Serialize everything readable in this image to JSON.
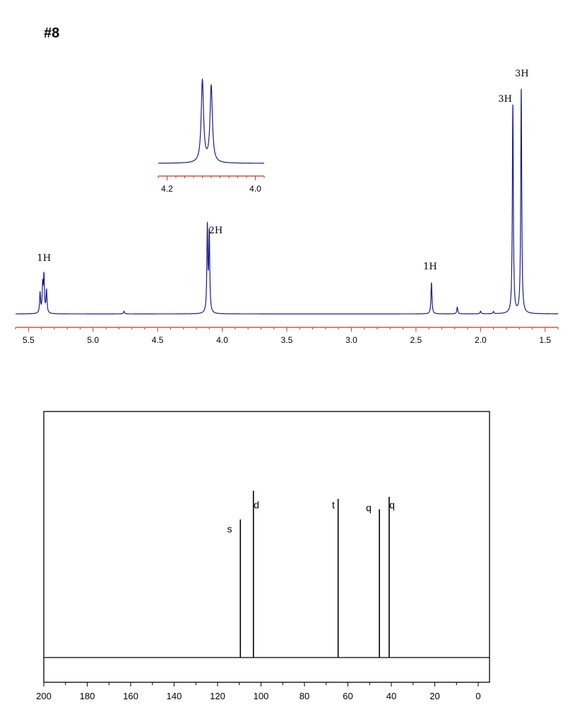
{
  "page": {
    "label": "#8"
  },
  "colors": {
    "spectrum": "#1a1a8c",
    "h_axis": "#c0392b",
    "c13_line": "#000000"
  },
  "chart_data": [
    {
      "type": "line",
      "xlabel": "",
      "ylabel": "",
      "xlim": [
        5.6,
        1.4
      ],
      "x_reversed": true,
      "ticks": [
        5.5,
        5.0,
        4.5,
        4.0,
        3.5,
        3.0,
        2.5,
        2.0,
        1.5
      ],
      "tick_labels": [
        "5.5",
        "5.0",
        "4.5",
        "4.0",
        "3.5",
        "3.0",
        "2.5",
        "2.0",
        "1.5"
      ],
      "peaks": [
        {
          "ppm": 5.41,
          "height": 0.09
        },
        {
          "ppm": 5.39,
          "height": 0.12
        },
        {
          "ppm": 5.38,
          "height": 0.16
        },
        {
          "ppm": 5.36,
          "height": 0.1
        },
        {
          "ppm": 4.76,
          "height": 0.012
        },
        {
          "ppm": 4.115,
          "height": 0.38
        },
        {
          "ppm": 4.1,
          "height": 0.35
        },
        {
          "ppm": 2.38,
          "height": 0.14
        },
        {
          "ppm": 2.18,
          "height": 0.03
        },
        {
          "ppm": 2.0,
          "height": 0.012
        },
        {
          "ppm": 1.9,
          "height": 0.01
        },
        {
          "ppm": 1.75,
          "height": 0.93
        },
        {
          "ppm": 1.685,
          "height": 1.0
        }
      ],
      "integrations": [
        {
          "label": "1H",
          "ppm": 5.38
        },
        {
          "label": "2H",
          "ppm": 4.05
        },
        {
          "label": "1H",
          "ppm": 2.39
        },
        {
          "label": "3H",
          "ppm": 1.81
        },
        {
          "label": "3H",
          "ppm": 1.68
        }
      ]
    },
    {
      "type": "line",
      "title": "",
      "xlim": [
        4.22,
        3.98
      ],
      "x_reversed": true,
      "tick_labels": [
        "4.2",
        "4.0"
      ],
      "ticks": [
        4.2,
        4.0
      ],
      "peaks": [
        {
          "ppm": 4.12,
          "height": 1.0
        },
        {
          "ppm": 4.1,
          "height": 0.93
        }
      ]
    },
    {
      "type": "bar",
      "xlim": [
        200,
        -5
      ],
      "x_reversed": true,
      "ticks": [
        200,
        180,
        160,
        140,
        120,
        100,
        80,
        60,
        40,
        20,
        0
      ],
      "tick_labels": [
        "200",
        "180",
        "160",
        "140",
        "120",
        "100",
        "80",
        "60",
        "40",
        "20",
        "0"
      ],
      "peaks": [
        {
          "ppm": 109.5,
          "height": 0.67,
          "mult": "s"
        },
        {
          "ppm": 103.5,
          "height": 0.81,
          "mult": "d"
        },
        {
          "ppm": 64.5,
          "height": 0.77,
          "mult": "t"
        },
        {
          "ppm": 45.5,
          "height": 0.72,
          "mult": "q"
        },
        {
          "ppm": 41.0,
          "height": 0.78,
          "mult": "q"
        }
      ]
    }
  ]
}
